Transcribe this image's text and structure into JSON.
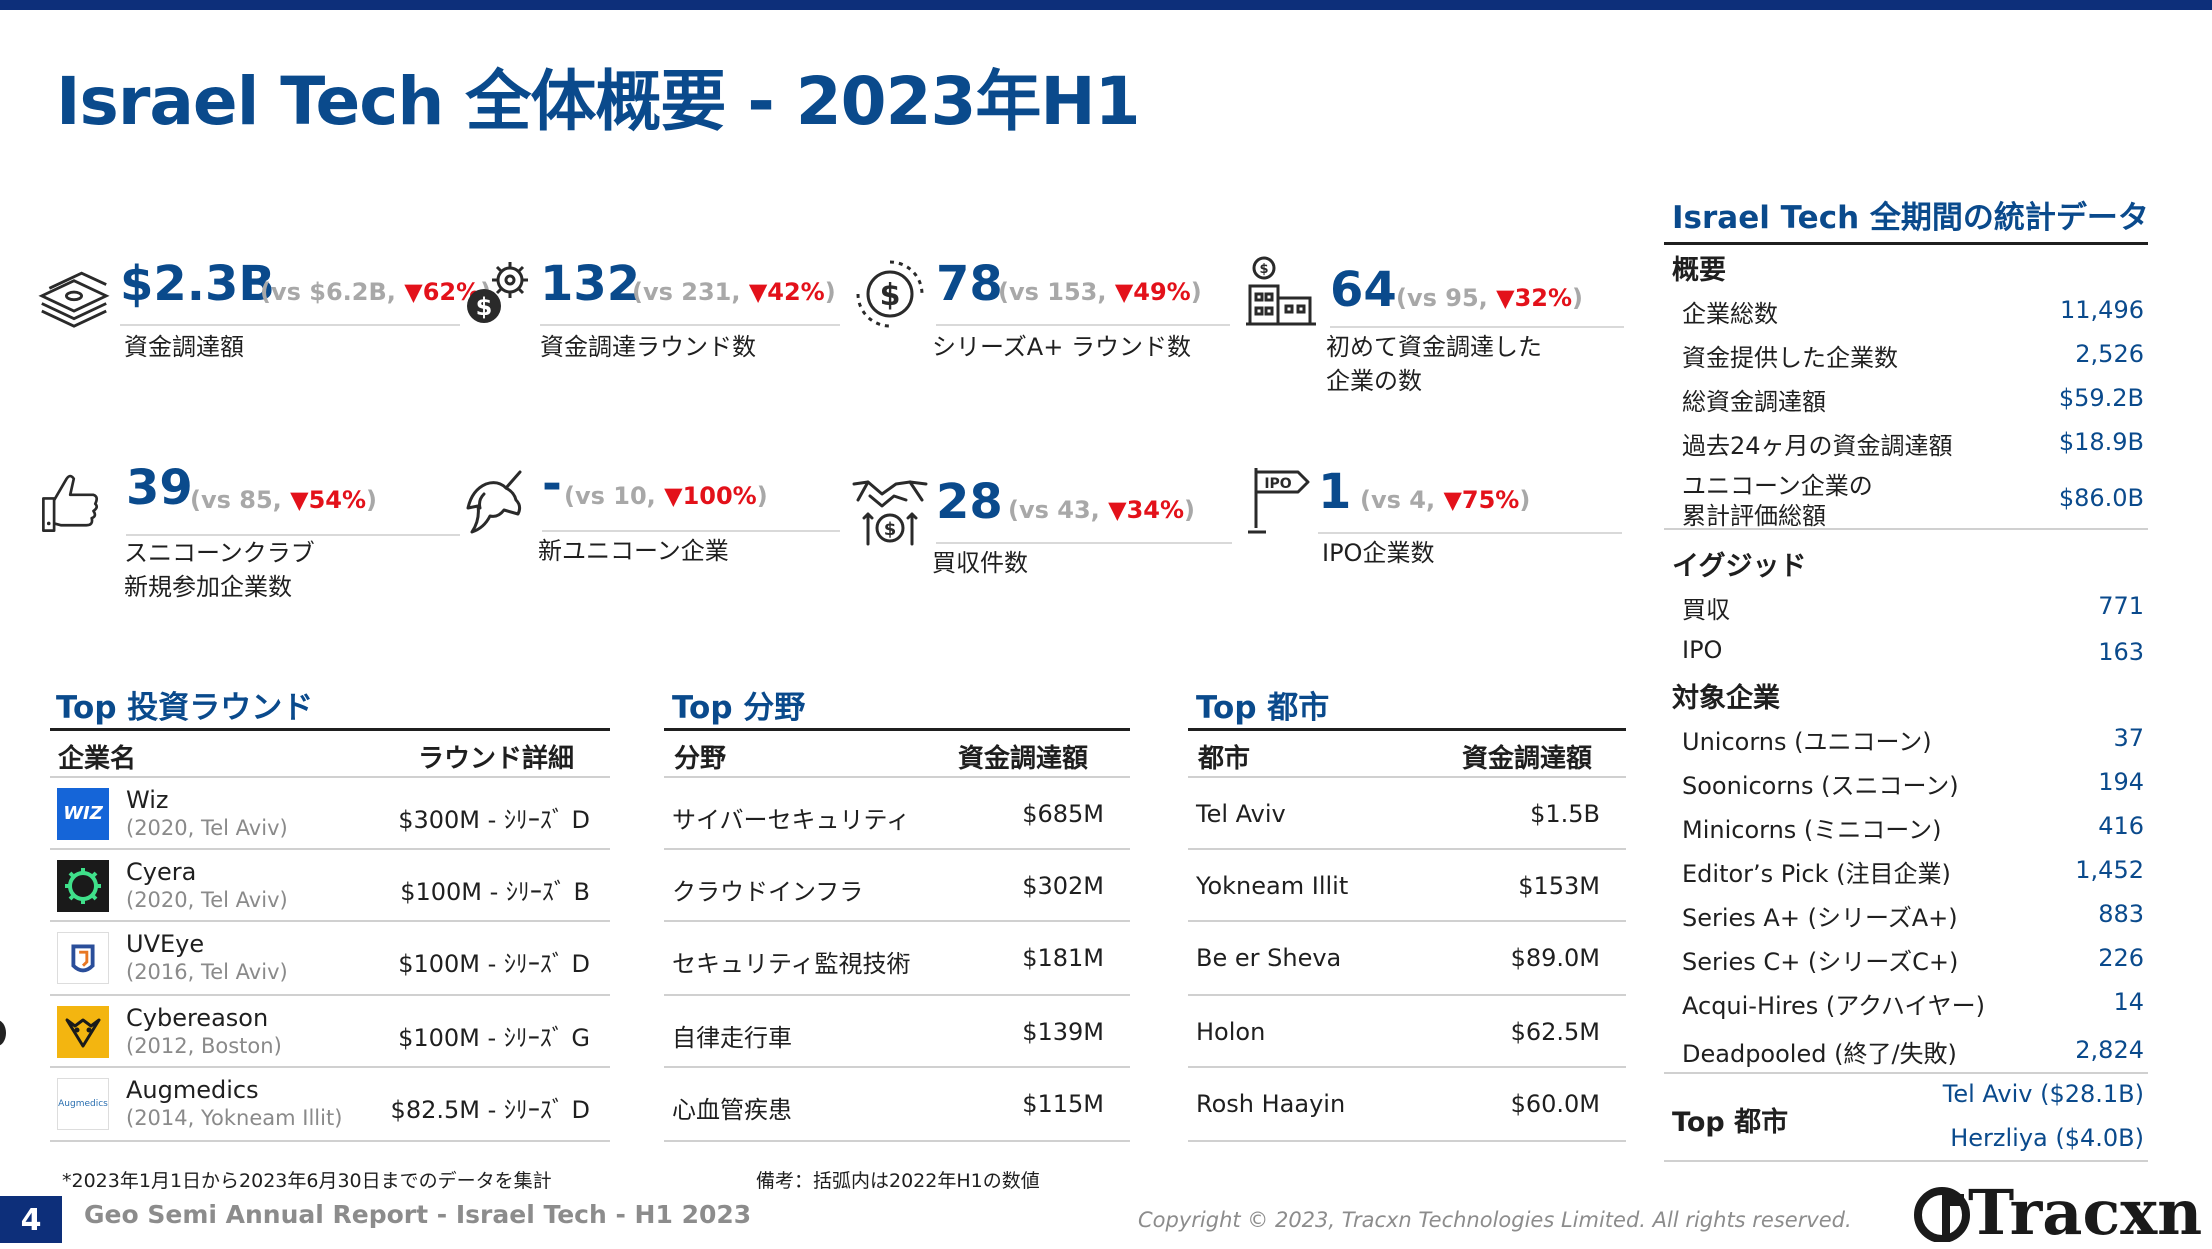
{
  "title": "Israel Tech 全体概要 - 2023年H1",
  "kpis": [
    {
      "icon": "money-stack-icon",
      "value": "$2.3B",
      "cmp_prefix": "(vs $6.2B, ",
      "pct": "▼62%",
      "cmp_suffix": ")",
      "label": "資金調達額",
      "label2": ""
    },
    {
      "icon": "dollar-gear-icon",
      "value": "132",
      "cmp_prefix": "(vs 231, ",
      "pct": "▼42%",
      "cmp_suffix": ")",
      "label": "資金調達ラウンド数",
      "label2": ""
    },
    {
      "icon": "dollar-coin-icon",
      "value": "78",
      "cmp_prefix": "(vs 153, ",
      "pct": "▼49%",
      "cmp_suffix": ")",
      "label": "シリーズA+ ラウンド数",
      "label2": ""
    },
    {
      "icon": "office-building-icon",
      "value": "64",
      "cmp_prefix": "(vs 95, ",
      "pct": "▼32%",
      "cmp_suffix": ")",
      "label": "初めて資金調達した",
      "label2": "企業の数"
    },
    {
      "icon": "thumbs-up-icon",
      "value": "39",
      "cmp_prefix": "(vs 85, ",
      "pct": "▼54%",
      "cmp_suffix": ")",
      "label": "スニコーンクラブ",
      "label2": "新規参加企業数"
    },
    {
      "icon": "unicorn-icon",
      "value": "-",
      "cmp_prefix": "(vs 10, ",
      "pct": "▼100%",
      "cmp_suffix": ")",
      "label": "新ユニコーン企業",
      "label2": ""
    },
    {
      "icon": "handshake-icon",
      "value": "28",
      "cmp_prefix": "(vs 43, ",
      "pct": "▼34%",
      "cmp_suffix": ")",
      "label": "買収件数",
      "label2": ""
    },
    {
      "icon": "ipo-sign-icon",
      "value": "1",
      "cmp_prefix": "(vs 4, ",
      "pct": "▼75%",
      "cmp_suffix": ")",
      "label": "IPO企業数",
      "label2": ""
    }
  ],
  "top_rounds": {
    "title": "Top 投資ラウンド",
    "headers": [
      "企業名",
      "ラウンド詳細"
    ],
    "rows": [
      {
        "name": "Wiz",
        "sub": "(2020, Tel Aviv)",
        "detail": "$300M - ｼﾘｰｽﾞ D",
        "logo": "wiz-logo",
        "logo_text": "WIZ"
      },
      {
        "name": "Cyera",
        "sub": "(2020, Tel Aviv)",
        "detail": "$100M - ｼﾘｰｽﾞ B",
        "logo": "cyera-logo",
        "logo_text": ""
      },
      {
        "name": "UVEye",
        "sub": "(2016, Tel Aviv)",
        "detail": "$100M - ｼﾘｰｽﾞ D",
        "logo": "uveye-logo",
        "logo_text": ""
      },
      {
        "name": "Cybereason",
        "sub": "(2012, Boston)",
        "detail": "$100M - ｼﾘｰｽﾞ G",
        "logo": "cybereason-logo",
        "logo_text": ""
      },
      {
        "name": "Augmedics",
        "sub": "(2014, Yokneam Illit)",
        "detail": "$82.5M - ｼﾘｰｽﾞ D",
        "logo": "augmedics-logo",
        "logo_text": "Augmedics"
      }
    ]
  },
  "top_fields": {
    "title": "Top 分野",
    "headers": [
      "分野",
      "資金調達額"
    ],
    "rows": [
      {
        "name": "サイバーセキュリティ",
        "value": "$685M"
      },
      {
        "name": "クラウドインフラ",
        "value": "$302M"
      },
      {
        "name": "セキュリティ監視技術",
        "value": "$181M"
      },
      {
        "name": "自律走行車",
        "value": "$139M"
      },
      {
        "name": "心血管疾患",
        "value": "$115M"
      }
    ]
  },
  "top_cities": {
    "title": "Top 都市",
    "headers": [
      "都市",
      "資金調達額"
    ],
    "rows": [
      {
        "name": "Tel Aviv",
        "value": "$1.5B"
      },
      {
        "name": "Yokneam Illit",
        "value": "$153M"
      },
      {
        "name": "Be er Sheva",
        "value": "$89.0M"
      },
      {
        "name": "Holon",
        "value": "$62.5M"
      },
      {
        "name": "Rosh Haayin",
        "value": "$60.0M"
      }
    ]
  },
  "stats": {
    "title": "Israel Tech 全期間の統計データ",
    "overview": {
      "label": "概要",
      "rows": [
        {
          "k": "企業総数",
          "v": "11,496"
        },
        {
          "k": "資金提供した企業数",
          "v": "2,526"
        },
        {
          "k": "総資金調達額",
          "v": "$59.2B"
        },
        {
          "k": "過去24ヶ月の資金調達額",
          "v": "$18.9B"
        },
        {
          "k": "ユニコーン企業の",
          "k2": "累計評価総額",
          "v": "$86.0B"
        }
      ]
    },
    "exits": {
      "label": "イグジッド",
      "rows": [
        {
          "k": "買収",
          "v": "771"
        },
        {
          "k": "IPO",
          "v": "163"
        }
      ]
    },
    "targets": {
      "label": "対象企業",
      "rows": [
        {
          "k": "Unicorns (ユニコーン)",
          "v": "37"
        },
        {
          "k": "Soonicorns (スニコーン)",
          "v": "194"
        },
        {
          "k": "Minicorns (ミニコーン)",
          "v": "416"
        },
        {
          "k": "Editor’s Pick (注目企業)",
          "v": "1,452"
        },
        {
          "k": "Series A+ (シリーズA+)",
          "v": "883"
        },
        {
          "k": "Series C+ (シリーズC+)",
          "v": "226"
        },
        {
          "k": "Acqui-Hires (アクハイヤー)",
          "v": "14"
        },
        {
          "k": "Deadpooled (終了/失敗)",
          "v": "2,824"
        }
      ]
    },
    "top_city": {
      "label": "Top 都市",
      "v1": "Tel Aviv ($28.1B)",
      "v2": "Herzliya ($4.0B)"
    }
  },
  "footnote_left": "*2023年1月1日から2023年6月30日までのデータを集計",
  "footnote_right": "備考：括弧内は2022年H1の数値",
  "page_number": "4",
  "footer_title": "Geo Semi Annual Report - Israel Tech - H1 2023",
  "copyright": "Copyright © 2023, Tracxn Technologies Limited. All rights reserved.",
  "brand": "Tracxn",
  "colors": {
    "accent": "#0a4a8c",
    "down": "#e3111a",
    "muted": "#a8a8a8",
    "navy": "#0d2f7a"
  }
}
